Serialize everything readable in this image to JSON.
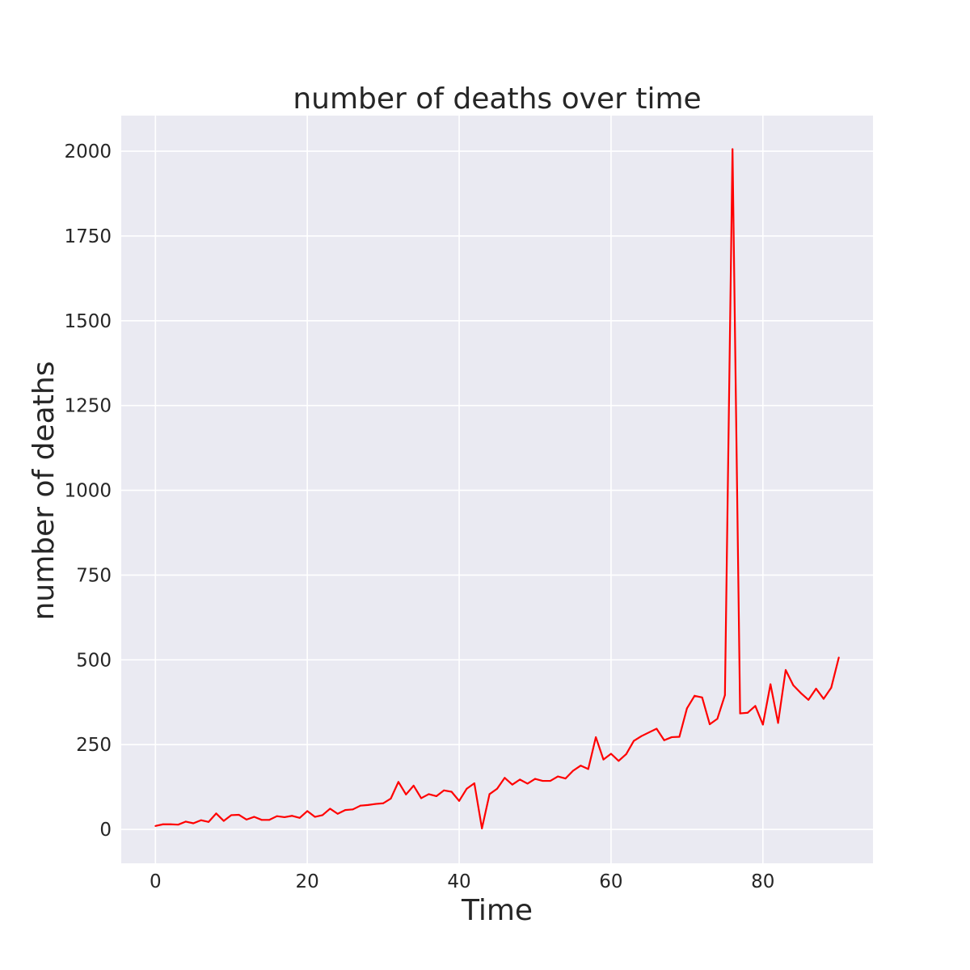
{
  "chart_data": {
    "type": "line",
    "title": "number of deaths over time",
    "xlabel": "Time",
    "ylabel": "number of deaths",
    "xlim": [
      -4.5,
      94.5
    ],
    "ylim": [
      -100,
      2105
    ],
    "xticks": [
      0,
      20,
      40,
      60,
      80
    ],
    "yticks": [
      0,
      250,
      500,
      750,
      1000,
      1250,
      1500,
      1750,
      2000
    ],
    "grid": true,
    "background": "#eaeaf2",
    "grid_color": "#ffffff",
    "series": [
      {
        "color": "#ff0000",
        "x": [
          0,
          1,
          2,
          3,
          4,
          5,
          6,
          7,
          8,
          9,
          10,
          11,
          12,
          13,
          14,
          15,
          16,
          17,
          18,
          19,
          20,
          21,
          22,
          23,
          24,
          25,
          26,
          27,
          28,
          29,
          30,
          31,
          32,
          33,
          34,
          35,
          36,
          37,
          38,
          39,
          40,
          41,
          42,
          43,
          44,
          45,
          46,
          47,
          48,
          49,
          50,
          51,
          52,
          53,
          54,
          55,
          56,
          57,
          58,
          59,
          60,
          61,
          62,
          63,
          64,
          65,
          66,
          67,
          68,
          69,
          70,
          71,
          72,
          73,
          74,
          75,
          76,
          77,
          78,
          79,
          80,
          81,
          82,
          83,
          84,
          85,
          86,
          87,
          88,
          89,
          90
        ],
        "values": [
          10,
          15,
          15,
          14,
          23,
          18,
          27,
          22,
          47,
          25,
          42,
          43,
          29,
          37,
          28,
          28,
          39,
          36,
          40,
          34,
          54,
          37,
          42,
          61,
          46,
          57,
          59,
          70,
          72,
          75,
          77,
          91,
          140,
          103,
          129,
          92,
          104,
          98,
          115,
          111,
          84,
          120,
          136,
          3,
          104,
          120,
          152,
          132,
          147,
          135,
          149,
          143,
          143,
          156,
          150,
          173,
          188,
          178,
          272,
          206,
          223,
          202,
          222,
          261,
          275,
          286,
          297,
          263,
          272,
          273,
          357,
          394,
          389,
          310,
          326,
          396,
          2006,
          342,
          344,
          364,
          309,
          428,
          314,
          470,
          425,
          402,
          382,
          415,
          385,
          418,
          507
        ]
      }
    ]
  }
}
